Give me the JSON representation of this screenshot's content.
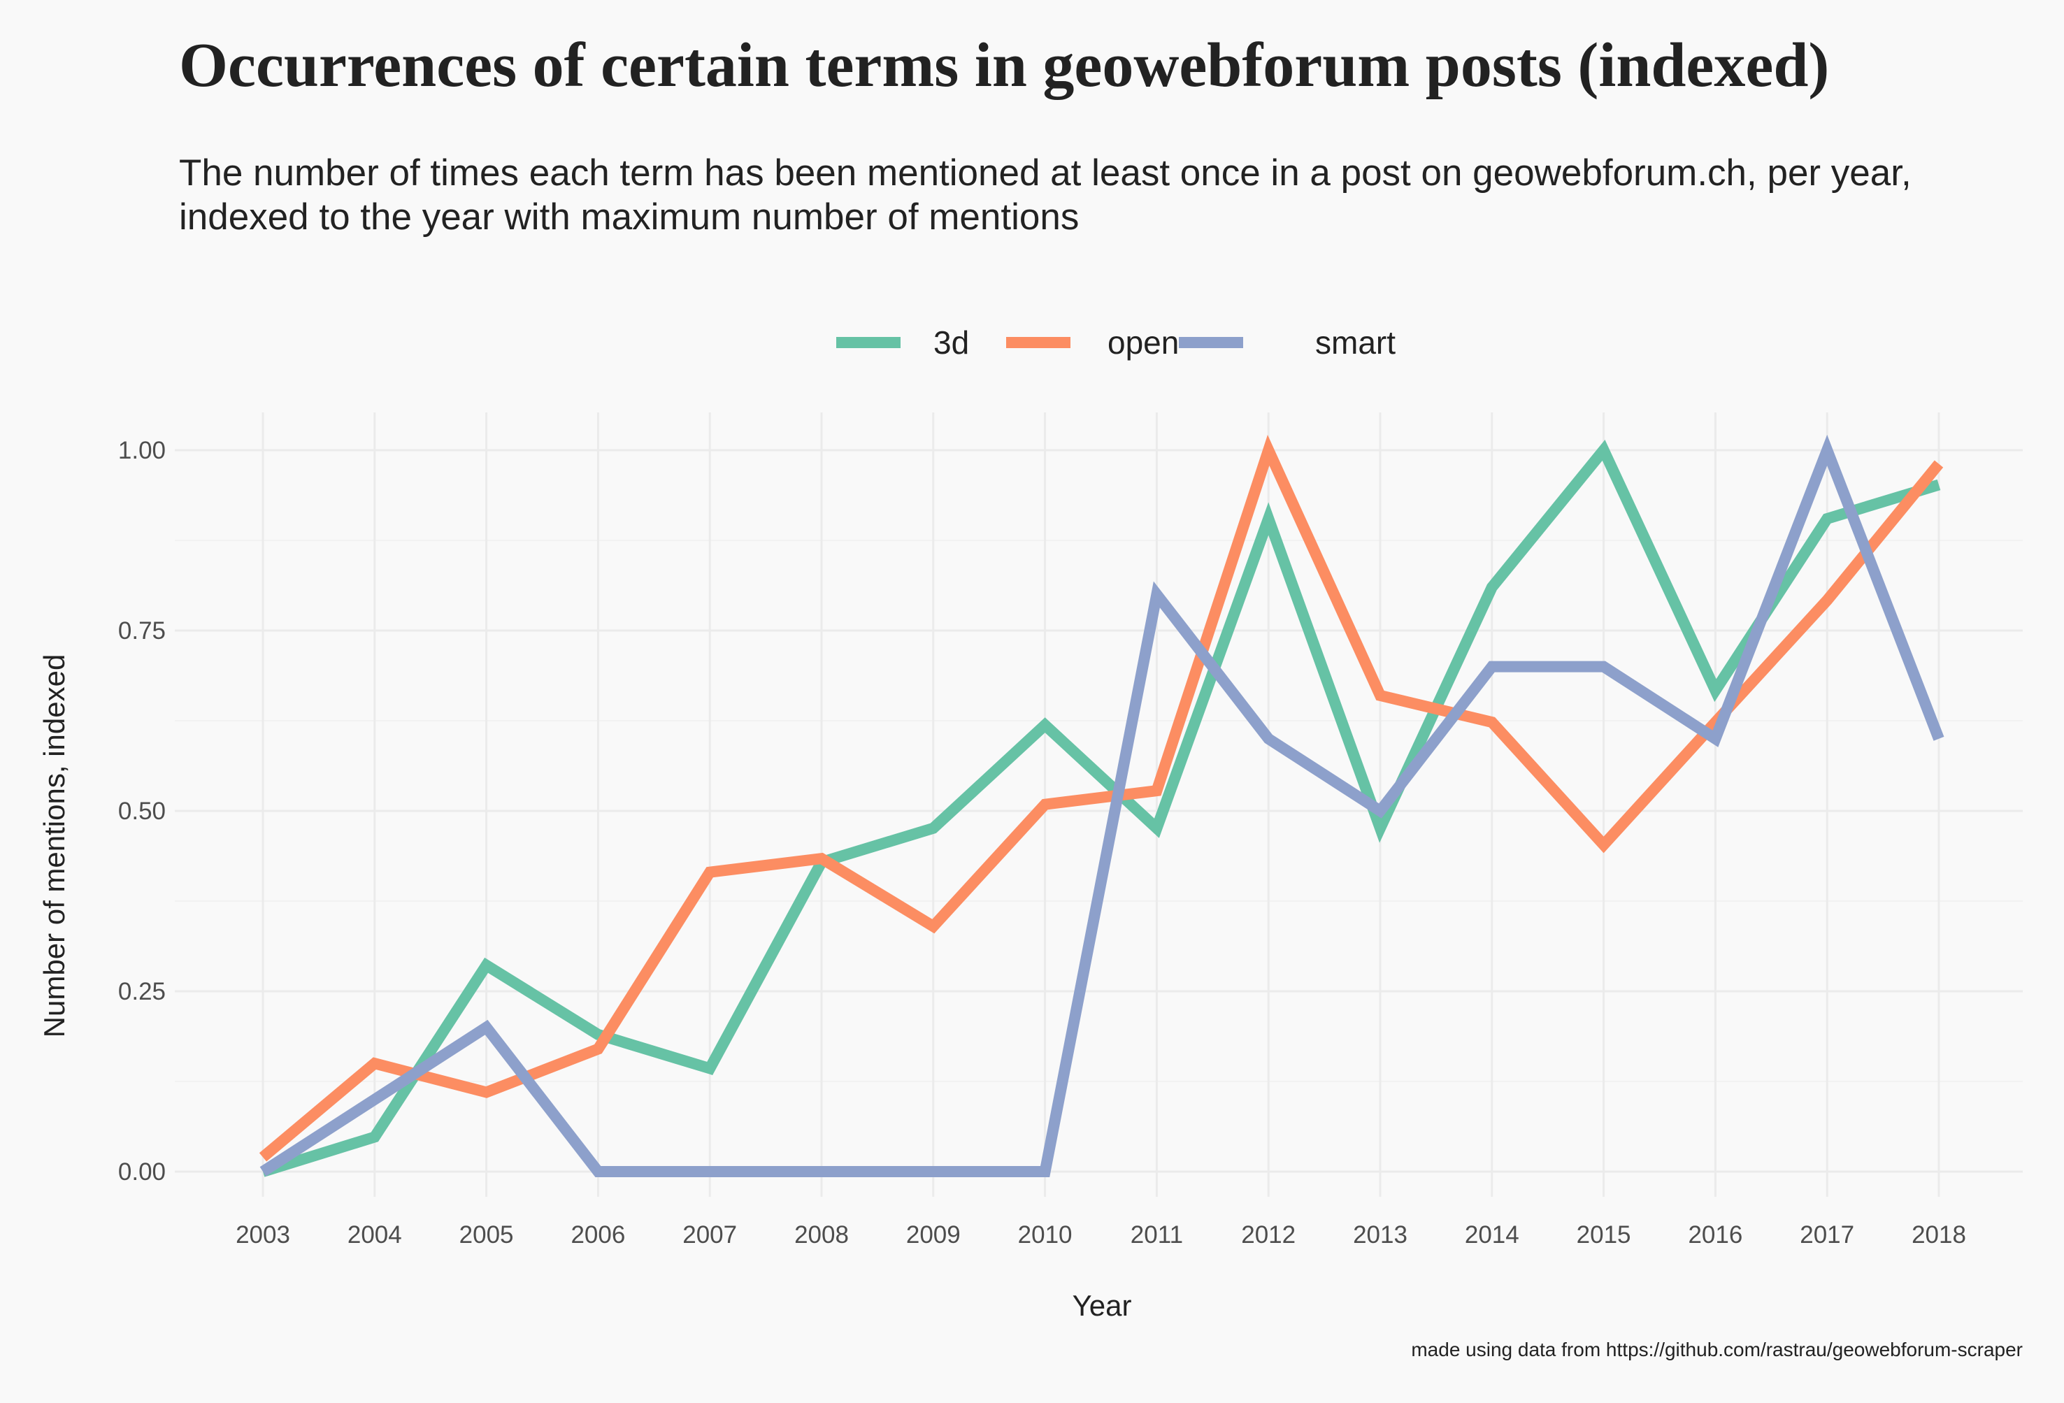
{
  "chart_data": {
    "type": "line",
    "title": "Occurrences of certain terms in geowebforum posts (indexed)",
    "subtitle_lines": [
      "The number of times each term has been mentioned at least once in a post on geowebforum.ch, per year,",
      "indexed to the year with maximum number of mentions"
    ],
    "xlabel": "Year",
    "ylabel": "Number of mentions, indexed",
    "caption": "made using data from https://github.com/rastrau/geowebforum-scraper",
    "x": [
      2003,
      2004,
      2005,
      2006,
      2007,
      2008,
      2009,
      2010,
      2011,
      2012,
      2013,
      2014,
      2015,
      2016,
      2017,
      2018
    ],
    "x_tick_labels": [
      "2003",
      "2004",
      "2005",
      "2006",
      "2007",
      "2008",
      "2009",
      "2010",
      "2011",
      "2012",
      "2013",
      "2014",
      "2015",
      "2016",
      "2017",
      "2018"
    ],
    "y_tick_labels": [
      "0.00",
      "0.25",
      "0.50",
      "0.75",
      "1.00"
    ],
    "y_ticks": [
      0,
      0.25,
      0.5,
      0.75,
      1.0
    ],
    "ylim": [
      0,
      1
    ],
    "grid": true,
    "legend_position": "top",
    "series": [
      {
        "name": "3d",
        "color": "#66c2a5",
        "values": [
          0.0,
          0.048,
          0.286,
          0.19,
          0.143,
          0.429,
          0.476,
          0.619,
          0.476,
          0.905,
          0.476,
          0.81,
          1.0,
          0.667,
          0.905,
          0.952
        ]
      },
      {
        "name": "open",
        "color": "#fc8d62",
        "values": [
          0.02,
          0.15,
          0.11,
          0.17,
          0.415,
          0.434,
          0.34,
          0.509,
          0.528,
          1.0,
          0.66,
          0.623,
          0.453,
          0.623,
          0.792,
          0.981
        ]
      },
      {
        "name": "smart",
        "color": "#8da0cb",
        "values": [
          0.0,
          0.1,
          0.2,
          0.0,
          0.0,
          0.0,
          0.0,
          0.0,
          0.8,
          0.6,
          0.5,
          0.7,
          0.7,
          0.6,
          1.0,
          0.6
        ]
      }
    ]
  }
}
